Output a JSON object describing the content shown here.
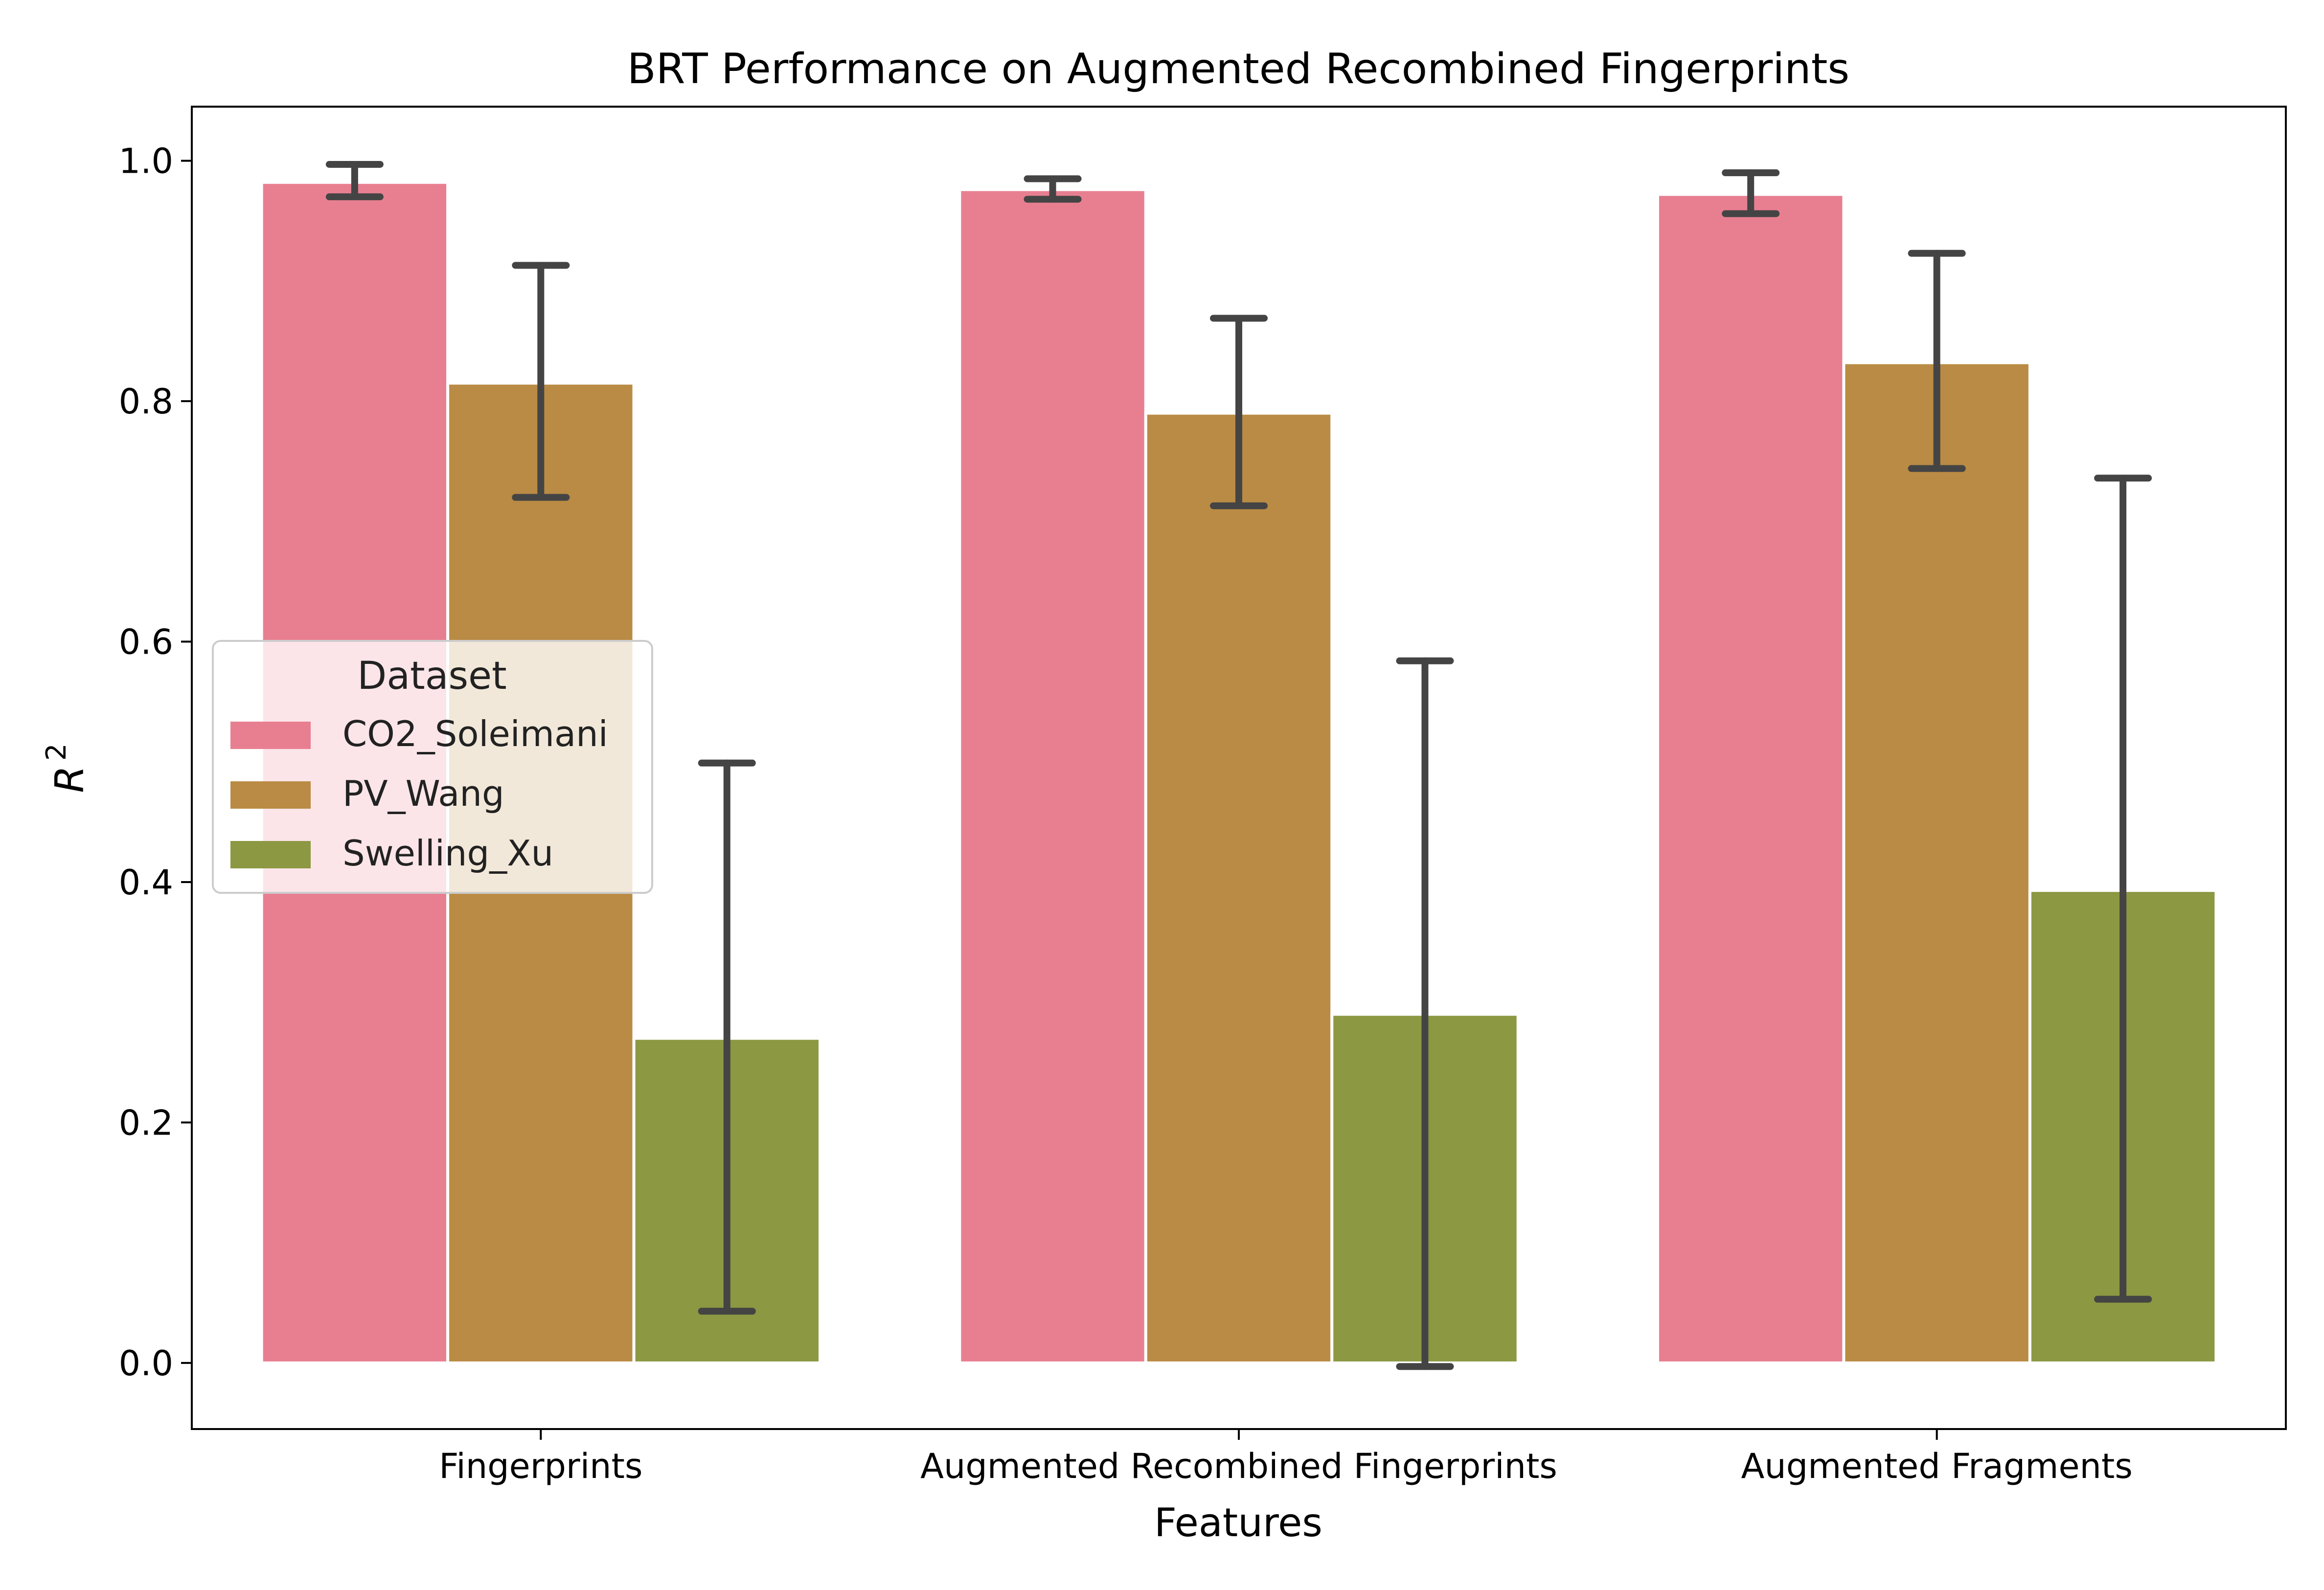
{
  "chart_data": {
    "type": "bar",
    "title": "BRT Performance on Augmented Recombined Fingerprints",
    "xlabel": "Features",
    "ylabel": "R",
    "ylabel_superscript": "2",
    "ylim": [
      -0.055,
      1.045
    ],
    "yticks": [
      "0.0",
      "0.2",
      "0.4",
      "0.6",
      "0.8",
      "1.0"
    ],
    "ytick_values": [
      0.0,
      0.2,
      0.4,
      0.6,
      0.8,
      1.0
    ],
    "grid": false,
    "legend": {
      "title": "Dataset",
      "placement": "center-left"
    },
    "categories": [
      "Fingerprints",
      "Augmented Recombined Fingerprints",
      "Augmented Fragments"
    ],
    "series": [
      {
        "name": "CO2_Soleimani",
        "color": "#e87f91",
        "values": [
          0.982,
          0.976,
          0.972
        ],
        "err_low": [
          0.97,
          0.968,
          0.956
        ],
        "err_high": [
          0.997,
          0.985,
          0.99
        ]
      },
      {
        "name": "PV_Wang",
        "color": "#ba8b44",
        "values": [
          0.815,
          0.79,
          0.832
        ],
        "err_low": [
          0.72,
          0.713,
          0.744
        ],
        "err_high": [
          0.913,
          0.869,
          0.923
        ]
      },
      {
        "name": "Swelling_Xu",
        "color": "#8c9842",
        "values": [
          0.27,
          0.29,
          0.393
        ],
        "err_low": [
          0.043,
          -0.003,
          0.053
        ],
        "err_high": [
          0.499,
          0.584,
          0.736
        ]
      }
    ]
  }
}
